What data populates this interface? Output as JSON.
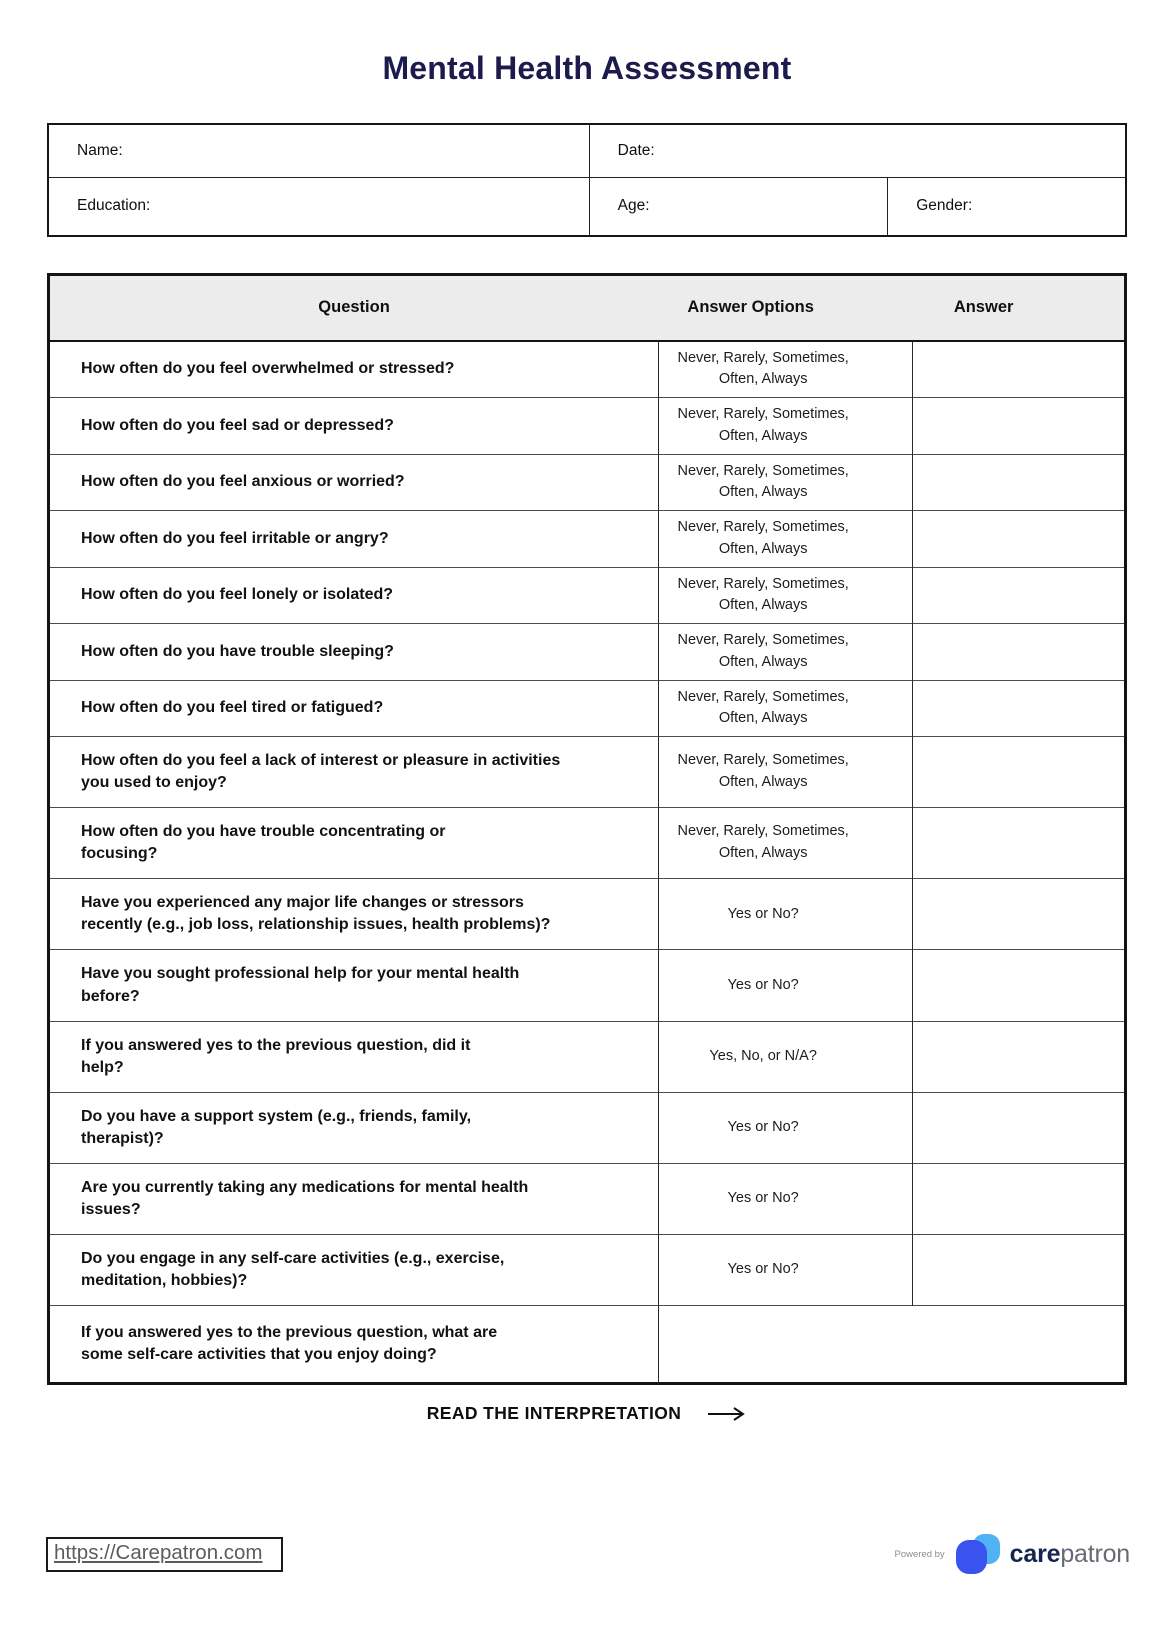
{
  "page": {
    "title": "Mental Health Assessment"
  },
  "info_form": {
    "name_label": "Name:",
    "date_label": "Date:",
    "education_label": "Education:",
    "age_label": "Age:",
    "gender_label": "Gender:"
  },
  "assessment_table": {
    "headers": {
      "question": "Question",
      "answer_options": "Answer Options",
      "answer": "Answer"
    },
    "rows": [
      {
        "question": "How often do you feel overwhelmed or stressed?",
        "options": "Never, Rarely, Sometimes,\nOften, Always",
        "answer": ""
      },
      {
        "question": "How often do you feel sad or depressed?",
        "options": "Never, Rarely, Sometimes,\nOften, Always",
        "answer": ""
      },
      {
        "question": "How often do you feel anxious or worried?",
        "options": "Never, Rarely, Sometimes,\nOften, Always",
        "answer": ""
      },
      {
        "question": "How often do you feel irritable or angry?",
        "options": "Never, Rarely, Sometimes,\nOften, Always",
        "answer": ""
      },
      {
        "question": "How often do you feel lonely or isolated?",
        "options": "Never, Rarely, Sometimes,\nOften, Always",
        "answer": ""
      },
      {
        "question": "How often do you have trouble sleeping?",
        "options": "Never, Rarely, Sometimes,\nOften, Always",
        "answer": ""
      },
      {
        "question": "How often do you feel tired or fatigued?",
        "options": "Never, Rarely, Sometimes,\nOften, Always",
        "answer": ""
      },
      {
        "question": "How often do you feel a lack of interest or pleasure in activities\nyou used to enjoy?",
        "options": "Never, Rarely, Sometimes,\nOften, Always",
        "answer": ""
      },
      {
        "question": "How often do you have trouble concentrating or\nfocusing?",
        "options": "Never, Rarely, Sometimes,\nOften, Always",
        "answer": ""
      },
      {
        "question": "Have you experienced any major life changes or stressors\nrecently (e.g., job loss, relationship issues, health problems)?",
        "options": "Yes or No?",
        "answer": ""
      },
      {
        "question": "Have you sought professional help for your mental health\nbefore?",
        "options": "Yes or No?",
        "answer": ""
      },
      {
        "question": "If you answered yes to the previous question, did it\nhelp?",
        "options": "Yes, No, or N/A?",
        "answer": ""
      },
      {
        "question": "Do you have a support system (e.g., friends, family,\ntherapist)?",
        "options": "Yes or No?",
        "answer": ""
      },
      {
        "question": "Are you currently taking any medications for mental health\nissues?",
        "options": "Yes or No?",
        "answer": ""
      },
      {
        "question": "Do you engage in any self-care activities (e.g., exercise,\nmeditation, hobbies)?",
        "options": "Yes or No?",
        "answer": ""
      },
      {
        "question": "If you answered yes to the previous question, what are\nsome self-care activities that you enjoy doing?",
        "options": "",
        "answer": "",
        "merged": true,
        "tall": true
      }
    ]
  },
  "cta": {
    "label": "READ THE INTERPRETATION"
  },
  "footer": {
    "link_text": "https://Carepatron.com",
    "powered_by": "Powered by",
    "brand_care": "care",
    "brand_patron": "patron"
  },
  "colors": {
    "title_navy": "#1b1b4d",
    "table_header_bg": "#ececec",
    "logo_blue_dark": "#3a53ee",
    "logo_blue_light": "#4fb2f2",
    "brand_navy": "#16254e"
  }
}
